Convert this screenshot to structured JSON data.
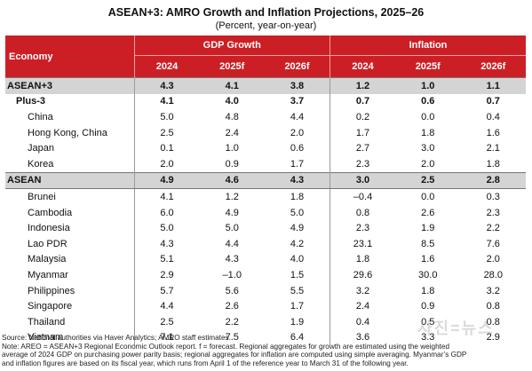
{
  "title": "ASEAN+3: AMRO Growth and Inflation Projections, 2025–26",
  "subtitle": "(Percent, year-on-year)",
  "header": {
    "economy_label": "Economy",
    "gdp_group": "GDP Growth",
    "inflation_group": "Inflation",
    "years": [
      "2024",
      "2025f",
      "2026f"
    ]
  },
  "colors": {
    "header_bg": "#cc1f25",
    "aggregate_row_bg": "#d4d4d4"
  },
  "rows": [
    {
      "name": "ASEAN+3",
      "gdp": [
        "4.3",
        "4.1",
        "3.8"
      ],
      "inf": [
        "1.2",
        "1.0",
        "1.1"
      ]
    },
    {
      "name": "Plus-3",
      "gdp": [
        "4.1",
        "4.0",
        "3.7"
      ],
      "inf": [
        "0.7",
        "0.6",
        "0.7"
      ]
    },
    {
      "name": "China",
      "gdp": [
        "5.0",
        "4.8",
        "4.4"
      ],
      "inf": [
        "0.2",
        "0.0",
        "0.4"
      ]
    },
    {
      "name": "Hong Kong, China",
      "gdp": [
        "2.5",
        "2.4",
        "2.0"
      ],
      "inf": [
        "1.7",
        "1.8",
        "1.6"
      ]
    },
    {
      "name": "Japan",
      "gdp": [
        "0.1",
        "1.0",
        "0.6"
      ],
      "inf": [
        "2.7",
        "3.0",
        "2.1"
      ]
    },
    {
      "name": "Korea",
      "gdp": [
        "2.0",
        "0.9",
        "1.7"
      ],
      "inf": [
        "2.3",
        "2.0",
        "1.8"
      ]
    },
    {
      "name": "ASEAN",
      "gdp": [
        "4.9",
        "4.6",
        "4.3"
      ],
      "inf": [
        "3.0",
        "2.5",
        "2.8"
      ]
    },
    {
      "name": "Brunei",
      "gdp": [
        "4.1",
        "1.2",
        "1.8"
      ],
      "inf": [
        "–0.4",
        "0.0",
        "0.3"
      ]
    },
    {
      "name": "Cambodia",
      "gdp": [
        "6.0",
        "4.9",
        "5.0"
      ],
      "inf": [
        "0.8",
        "2.6",
        "2.3"
      ]
    },
    {
      "name": "Indonesia",
      "gdp": [
        "5.0",
        "5.0",
        "4.9"
      ],
      "inf": [
        "2.3",
        "1.9",
        "2.2"
      ]
    },
    {
      "name": "Lao PDR",
      "gdp": [
        "4.3",
        "4.4",
        "4.2"
      ],
      "inf": [
        "23.1",
        "8.5",
        "7.6"
      ]
    },
    {
      "name": "Malaysia",
      "gdp": [
        "5.1",
        "4.3",
        "4.0"
      ],
      "inf": [
        "1.8",
        "1.6",
        "2.0"
      ]
    },
    {
      "name": "Myanmar",
      "gdp": [
        "2.9",
        "–1.0",
        "1.5"
      ],
      "inf": [
        "29.6",
        "30.0",
        "28.0"
      ]
    },
    {
      "name": "Philippines",
      "gdp": [
        "5.7",
        "5.6",
        "5.5"
      ],
      "inf": [
        "3.2",
        "1.8",
        "3.2"
      ]
    },
    {
      "name": "Singapore",
      "gdp": [
        "4.4",
        "2.6",
        "1.7"
      ],
      "inf": [
        "2.4",
        "0.9",
        "0.8"
      ]
    },
    {
      "name": "Thailand",
      "gdp": [
        "2.5",
        "2.2",
        "1.9"
      ],
      "inf": [
        "0.4",
        "0.5",
        "0.8"
      ]
    },
    {
      "name": "Vietnam",
      "gdp": [
        "7.1",
        "7.5",
        "6.4"
      ],
      "inf": [
        "3.6",
        "3.3",
        "2.9"
      ]
    }
  ],
  "notes": [
    "Source: National authorities via Haver Analytics; AMRO staff estimates.",
    "Note: AREO = ASEAN+3 Regional Economic Outlook report. f = forecast. Regional aggregates for growth are estimated using the weighted",
    "average of 2024 GDP on purchasing power parity basis; regional aggregates for inflation are computed using simple averaging. Myanmar’s GDP",
    "and inflation figures are based on its fiscal year, which runs from April 1 of the reference year to March 31 of the following year."
  ],
  "watermark": "사진=뉴스"
}
